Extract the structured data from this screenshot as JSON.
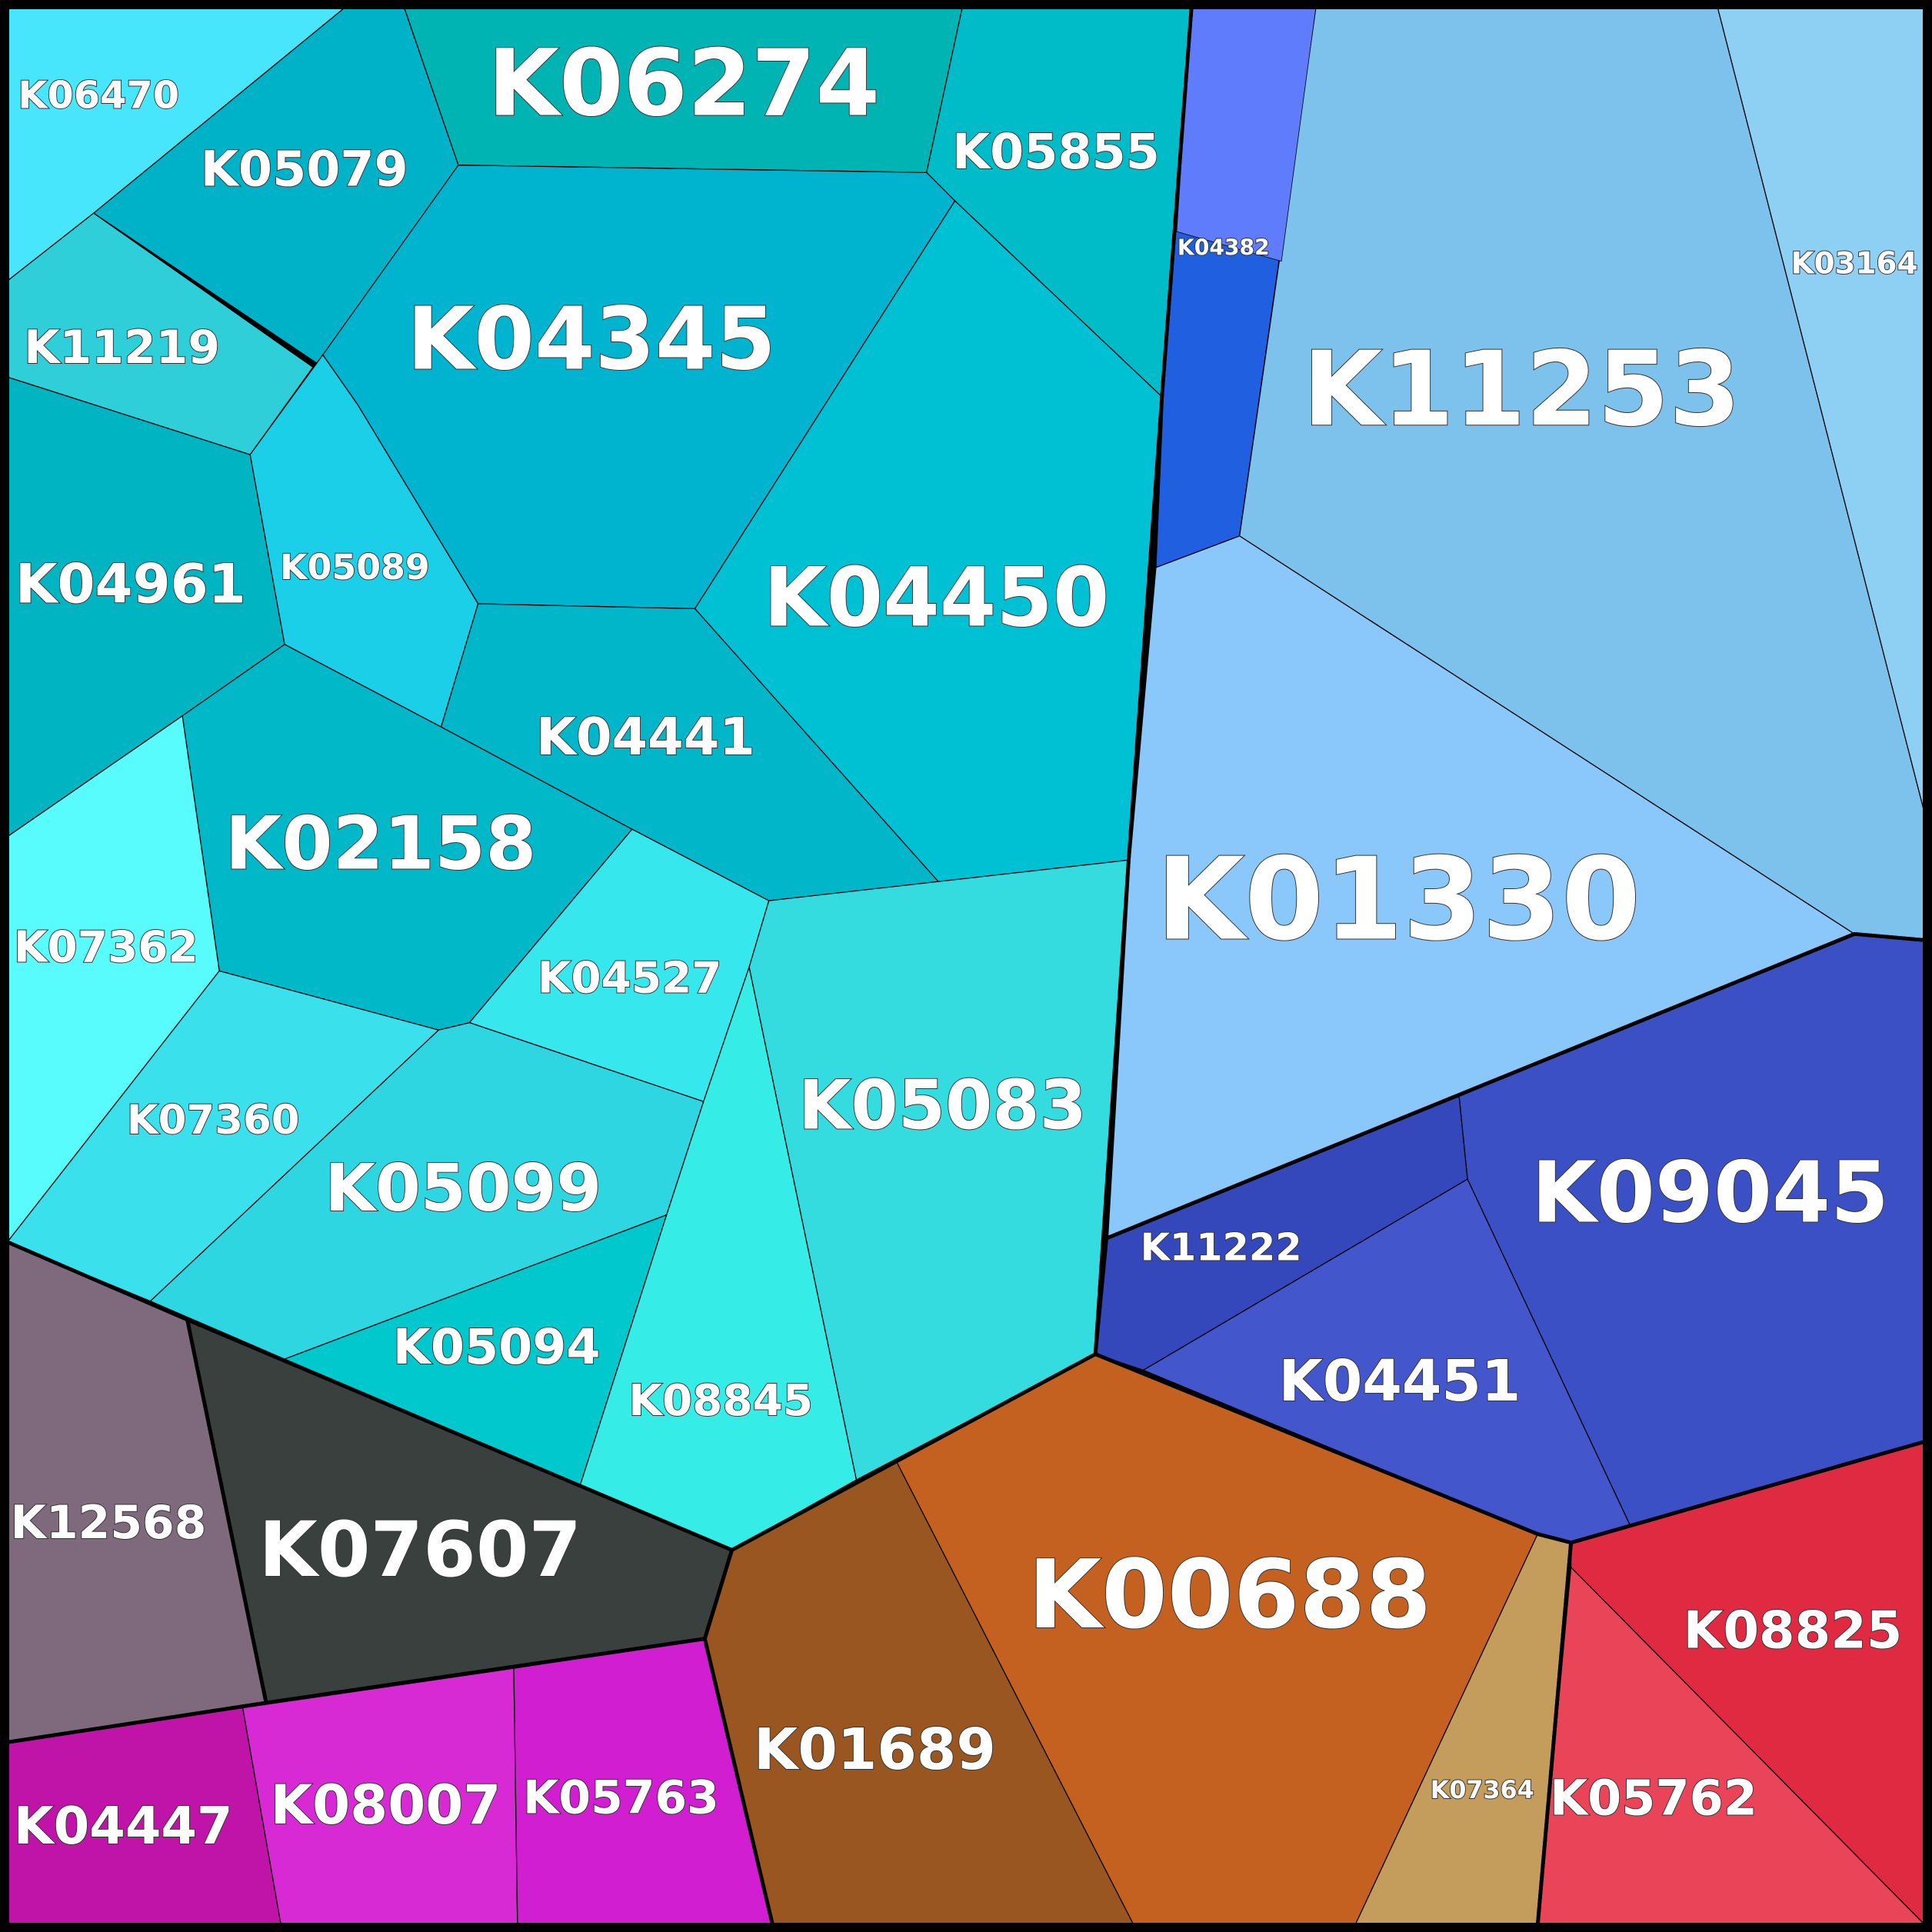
{
  "cells": [
    "K06470",
    "K05079",
    "K06274",
    "K05855",
    "K11219",
    "K04345",
    "K04450",
    "K04961",
    "K05089",
    "K04441",
    "K02158",
    "K07362",
    "K04527",
    "K05083",
    "K07360",
    "K05099",
    "K05094",
    "K08845",
    "K04382",
    "K11253",
    "K03164",
    "K01330",
    "K09045",
    "K11222",
    "K04451",
    "K12568",
    "K07607",
    "K04447",
    "K08007",
    "K05763",
    "K01689",
    "K00688",
    "K07364",
    "K08825",
    "K05762"
  ]
}
